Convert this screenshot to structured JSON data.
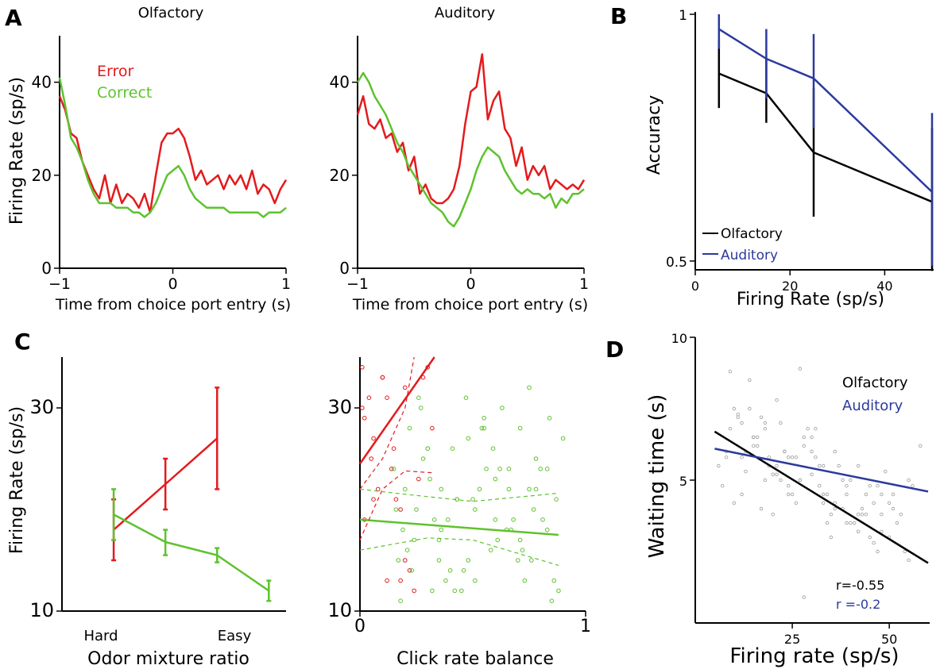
{
  "chart_data": [
    {
      "panel": "A",
      "type": "line",
      "title": "Olfactory",
      "xlabel": "Time from choice port entry (s)",
      "ylabel": "Firing Rate (sp/s)",
      "xlim": [
        -1,
        1
      ],
      "ylim": [
        0,
        50
      ],
      "xticks": [
        -1,
        0,
        1
      ],
      "yticks": [
        0,
        20,
        40
      ],
      "legend": "top-left",
      "series": [
        {
          "name": "Error",
          "color": "#e41a1c",
          "x": [
            -1,
            -0.95,
            -0.9,
            -0.85,
            -0.8,
            -0.75,
            -0.7,
            -0.65,
            -0.6,
            -0.55,
            -0.5,
            -0.45,
            -0.4,
            -0.35,
            -0.3,
            -0.25,
            -0.2,
            -0.15,
            -0.1,
            -0.05,
            0,
            0.05,
            0.1,
            0.15,
            0.2,
            0.25,
            0.3,
            0.35,
            0.4,
            0.45,
            0.5,
            0.55,
            0.6,
            0.65,
            0.7,
            0.75,
            0.8,
            0.85,
            0.9,
            0.95,
            1
          ],
          "y": [
            37,
            34,
            29,
            28,
            23,
            20,
            17,
            15,
            20,
            14,
            18,
            14,
            16,
            15,
            13,
            16,
            12,
            20,
            27,
            29,
            29,
            30,
            28,
            24,
            19,
            21,
            18,
            19,
            20,
            17,
            20,
            18,
            20,
            17,
            21,
            16,
            18,
            17,
            14,
            17,
            19
          ]
        },
        {
          "name": "Correct",
          "color": "#5ec22e",
          "x": [
            -1,
            -0.95,
            -0.9,
            -0.85,
            -0.8,
            -0.75,
            -0.7,
            -0.65,
            -0.6,
            -0.55,
            -0.5,
            -0.45,
            -0.4,
            -0.35,
            -0.3,
            -0.25,
            -0.2,
            -0.15,
            -0.1,
            -0.05,
            0,
            0.05,
            0.1,
            0.15,
            0.2,
            0.25,
            0.3,
            0.35,
            0.4,
            0.45,
            0.5,
            0.55,
            0.6,
            0.65,
            0.7,
            0.75,
            0.8,
            0.85,
            0.9,
            0.95,
            1
          ],
          "y": [
            41,
            35,
            28,
            26,
            23,
            19,
            16,
            14,
            14,
            14,
            13,
            13,
            13,
            12,
            12,
            11,
            12,
            14,
            17,
            20,
            21,
            22,
            20,
            17,
            15,
            14,
            13,
            13,
            13,
            13,
            12,
            12,
            12,
            12,
            12,
            12,
            11,
            12,
            12,
            12,
            13
          ]
        }
      ]
    },
    {
      "panel": "A",
      "type": "line",
      "title": "Auditory",
      "xlabel": "Time from choice port entry (s)",
      "xlim": [
        -1,
        1
      ],
      "ylim": [
        0,
        50
      ],
      "xticks": [
        -1,
        0,
        1
      ],
      "yticks": [
        0,
        20,
        40
      ],
      "series": [
        {
          "name": "Error",
          "color": "#e41a1c",
          "x": [
            -1,
            -0.95,
            -0.9,
            -0.85,
            -0.8,
            -0.75,
            -0.7,
            -0.65,
            -0.6,
            -0.55,
            -0.5,
            -0.45,
            -0.4,
            -0.35,
            -0.3,
            -0.25,
            -0.2,
            -0.15,
            -0.1,
            -0.05,
            0,
            0.05,
            0.1,
            0.15,
            0.2,
            0.25,
            0.3,
            0.35,
            0.4,
            0.45,
            0.5,
            0.55,
            0.6,
            0.65,
            0.7,
            0.75,
            0.8,
            0.85,
            0.9,
            0.95,
            1
          ],
          "y": [
            33,
            37,
            31,
            30,
            32,
            28,
            29,
            25,
            27,
            21,
            24,
            16,
            18,
            15,
            14,
            14,
            15,
            17,
            22,
            31,
            38,
            39,
            46,
            32,
            36,
            38,
            30,
            28,
            22,
            26,
            19,
            22,
            20,
            22,
            17,
            19,
            18,
            17,
            18,
            17,
            19
          ]
        },
        {
          "name": "Correct",
          "color": "#5ec22e",
          "x": [
            -1,
            -0.95,
            -0.9,
            -0.85,
            -0.8,
            -0.75,
            -0.7,
            -0.65,
            -0.6,
            -0.55,
            -0.5,
            -0.45,
            -0.4,
            -0.35,
            -0.3,
            -0.25,
            -0.2,
            -0.15,
            -0.1,
            -0.05,
            0,
            0.05,
            0.1,
            0.15,
            0.2,
            0.25,
            0.3,
            0.35,
            0.4,
            0.45,
            0.5,
            0.55,
            0.6,
            0.65,
            0.7,
            0.75,
            0.8,
            0.85,
            0.9,
            0.95,
            1
          ],
          "y": [
            40,
            42,
            40,
            37,
            35,
            33,
            30,
            27,
            25,
            22,
            20,
            18,
            16,
            14,
            13,
            12,
            10,
            9,
            11,
            14,
            17,
            21,
            24,
            26,
            25,
            24,
            21,
            19,
            17,
            16,
            17,
            16,
            16,
            15,
            16,
            13,
            15,
            14,
            16,
            16,
            17
          ]
        }
      ]
    },
    {
      "panel": "B",
      "type": "line",
      "xlabel": "Firing Rate (sp/s)",
      "ylabel": "Accuracy",
      "xlim": [
        0,
        50
      ],
      "ylim": [
        0.45,
        1
      ],
      "xticks": [
        0,
        20,
        40
      ],
      "yticks": [
        0.5,
        1
      ],
      "ytick_labels": [
        "0.5",
        "1"
      ],
      "legend": "bottom-left",
      "series": [
        {
          "name": "Olfactory",
          "color": "#000000",
          "x": [
            5,
            15,
            25,
            50
          ],
          "y": [
            0.88,
            0.84,
            0.72,
            0.62
          ],
          "err_low": [
            0.81,
            0.78,
            0.59,
            0.48
          ],
          "err_high": [
            0.95,
            0.91,
            0.85,
            0.77
          ]
        },
        {
          "name": "Auditory",
          "color": "#2b3a9e",
          "x": [
            5,
            15,
            25,
            50
          ],
          "y": [
            0.97,
            0.91,
            0.87,
            0.64
          ],
          "err_low": [
            0.93,
            0.83,
            0.77,
            0.49
          ],
          "err_high": [
            1.0,
            0.97,
            0.96,
            0.8
          ]
        }
      ]
    },
    {
      "panel": "C",
      "type": "line",
      "xlabel": "Odor mixture ratio",
      "ylabel": "Firing Rate (sp/s)",
      "ylim": [
        10,
        35
      ],
      "yticks": [
        10,
        30
      ],
      "categories": [
        "Hard",
        "Easy"
      ],
      "series": [
        {
          "name": "Error",
          "color": "#e41a1c",
          "x": [
            0.3,
            0.6,
            0.9
          ],
          "y": [
            18,
            22.5,
            27
          ],
          "err_low": [
            15,
            20,
            22
          ],
          "err_high": [
            21,
            25,
            32
          ]
        },
        {
          "name": "Correct",
          "color": "#5ec22e",
          "x": [
            0.3,
            0.6,
            0.9,
            1.2
          ],
          "y": [
            19.5,
            16.8,
            15.5,
            12
          ],
          "err_low": [
            17,
            15.5,
            14.8,
            11
          ],
          "err_high": [
            22,
            18,
            16.2,
            13
          ]
        }
      ]
    },
    {
      "panel": "C",
      "type": "scatter",
      "xlabel": "Click rate balance",
      "xlim": [
        0,
        1
      ],
      "ylim": [
        10,
        35
      ],
      "xticks": [
        0,
        1
      ],
      "yticks": [
        10,
        30
      ],
      "fits": [
        {
          "name": "Error",
          "color": "#e41a1c",
          "x": [
            0,
            0.33
          ],
          "y": [
            24.5,
            35
          ]
        },
        {
          "name": "Correct",
          "color": "#5ec22e",
          "x": [
            0,
            0.88
          ],
          "y": [
            19,
            17.5
          ]
        }
      ],
      "series": [
        {
          "name": "Error",
          "color": "#e41a1c",
          "x": [
            0.01,
            0.01,
            0.02,
            0.04,
            0.05,
            0.06,
            0.08,
            0.1,
            0.12,
            0.14,
            0.15,
            0.16,
            0.18,
            0.2,
            0.22,
            0.24,
            0.26,
            0.28,
            0.3,
            0.32,
            0.2,
            0.12,
            0.18,
            0.02,
            0.06,
            0.1
          ],
          "y": [
            34,
            30,
            29,
            31,
            25,
            27,
            22,
            33,
            31,
            24,
            26,
            21,
            20,
            32,
            14,
            12,
            23,
            33,
            34,
            28,
            15,
            13,
            13,
            19,
            21,
            33
          ]
        },
        {
          "name": "Correct",
          "color": "#5ec22e",
          "x": [
            0.15,
            0.2,
            0.25,
            0.3,
            0.35,
            0.4,
            0.45,
            0.5,
            0.55,
            0.6,
            0.65,
            0.7,
            0.75,
            0.8,
            0.85,
            0.17,
            0.22,
            0.28,
            0.33,
            0.38,
            0.43,
            0.48,
            0.53,
            0.58,
            0.63,
            0.68,
            0.73,
            0.78,
            0.83,
            0.88,
            0.16,
            0.21,
            0.26,
            0.31,
            0.36,
            0.41,
            0.46,
            0.51,
            0.56,
            0.61,
            0.66,
            0.71,
            0.76,
            0.81,
            0.86,
            0.18,
            0.24,
            0.3,
            0.36,
            0.42,
            0.48,
            0.54,
            0.6,
            0.66,
            0.72,
            0.78,
            0.84,
            0.19,
            0.27,
            0.35,
            0.43,
            0.51,
            0.59,
            0.67,
            0.75,
            0.83,
            0.23,
            0.39,
            0.55,
            0.71,
            0.87,
            0.32,
            0.47,
            0.62,
            0.77,
            0.9
          ],
          "y": [
            24,
            22,
            20,
            26,
            17,
            14,
            12,
            21,
            29,
            23,
            18,
            15,
            32,
            24,
            11,
            15,
            28,
            25,
            19,
            13,
            21,
            27,
            22,
            16,
            30,
            19,
            13,
            25,
            18,
            12,
            20,
            16,
            31,
            23,
            18,
            26,
            14,
            20,
            24,
            17,
            22,
            28,
            15,
            19,
            13,
            11,
            17,
            26,
            22,
            12,
            15,
            28,
            19,
            24,
            16,
            22,
            29,
            18,
            30,
            15,
            21,
            13,
            26,
            18,
            22,
            24,
            14,
            19,
            28,
            17,
            21,
            12,
            31,
            24,
            20,
            27
          ]
        }
      ]
    },
    {
      "panel": "D",
      "type": "scatter",
      "xlabel": "Firing rate (sp/s)",
      "ylabel": "Waiting time (s)",
      "xlim": [
        0,
        60
      ],
      "ylim": [
        0,
        10
      ],
      "xticks": [
        25,
        50
      ],
      "yticks": [
        5,
        10
      ],
      "legend": "top-right",
      "annotations": [
        "r=-0.55",
        "r =-0.2"
      ],
      "fits": [
        {
          "name": "Olfactory",
          "color": "#000000",
          "x": [
            5,
            60
          ],
          "y": [
            6.7,
            2.1
          ]
        },
        {
          "name": "Auditory",
          "color": "#2b3a9e",
          "x": [
            5,
            60
          ],
          "y": [
            6.1,
            4.6
          ]
        }
      ],
      "series": [
        {
          "name": "points",
          "color": "#9a9a9a",
          "x": [
            6,
            8,
            10,
            12,
            14,
            16,
            18,
            20,
            22,
            24,
            26,
            28,
            30,
            32,
            34,
            36,
            38,
            40,
            42,
            44,
            46,
            48,
            50,
            52,
            54,
            56,
            58,
            7,
            9,
            11,
            13,
            15,
            17,
            19,
            21,
            23,
            25,
            27,
            29,
            31,
            33,
            35,
            37,
            39,
            41,
            43,
            45,
            47,
            49,
            51,
            53,
            55,
            9,
            12,
            15,
            18,
            21,
            24,
            27,
            30,
            33,
            36,
            39,
            42,
            45,
            48,
            51,
            10,
            14,
            18,
            22,
            26,
            30,
            34,
            38,
            42,
            46,
            50,
            8,
            13,
            17,
            20,
            24,
            28,
            32,
            36,
            40,
            44,
            48,
            12,
            16,
            19,
            23,
            27,
            31,
            35,
            39,
            43,
            47,
            28,
            21,
            33,
            55,
            11,
            15,
            25
          ],
          "y": [
            5.5,
            6.0,
            7.5,
            4.5,
            8.5,
            6.2,
            5.0,
            3.8,
            7.0,
            5.8,
            4.2,
            6.5,
            5.2,
            4.8,
            3.5,
            6.0,
            4.0,
            5.0,
            3.2,
            4.5,
            2.8,
            3.8,
            4.2,
            3.5,
            2.5,
            4.8,
            6.2,
            4.8,
            6.8,
            7.2,
            5.3,
            6.5,
            4.0,
            5.5,
            7.8,
            6.0,
            4.5,
            5.0,
            6.8,
            5.8,
            4.2,
            3.8,
            5.5,
            4.8,
            3.5,
            4.0,
            3.0,
            2.5,
            5.3,
            4.5,
            3.8,
            2.2,
            8.8,
            5.8,
            6.2,
            7.0,
            5.5,
            4.8,
            8.9,
            6.5,
            5.5,
            4.0,
            3.5,
            5.5,
            4.8,
            3.2,
            4.0,
            4.2,
            7.5,
            6.8,
            5.0,
            5.8,
            6.0,
            4.5,
            5.0,
            3.8,
            4.2,
            3.0,
            5.8,
            6.0,
            7.2,
            5.2,
            4.5,
            6.2,
            5.5,
            4.2,
            3.5,
            3.8,
            4.5,
            7.0,
            6.5,
            5.8,
            6.0,
            5.0,
            6.8,
            3.0,
            4.5,
            3.8,
            4.8,
            0.9,
            5.2,
            4.5,
            5.0,
            7.3,
            6.5,
            5.8
          ]
        }
      ]
    }
  ],
  "panel_labels": {
    "a": "A",
    "b": "B",
    "c": "C",
    "d": "D"
  },
  "olfactory_title": "Olfactory",
  "auditory_title": "Auditory",
  "colors": {
    "error": "#e41a1c",
    "correct": "#5ec22e",
    "olfactory": "#000000",
    "auditory": "#2b3a9e"
  }
}
